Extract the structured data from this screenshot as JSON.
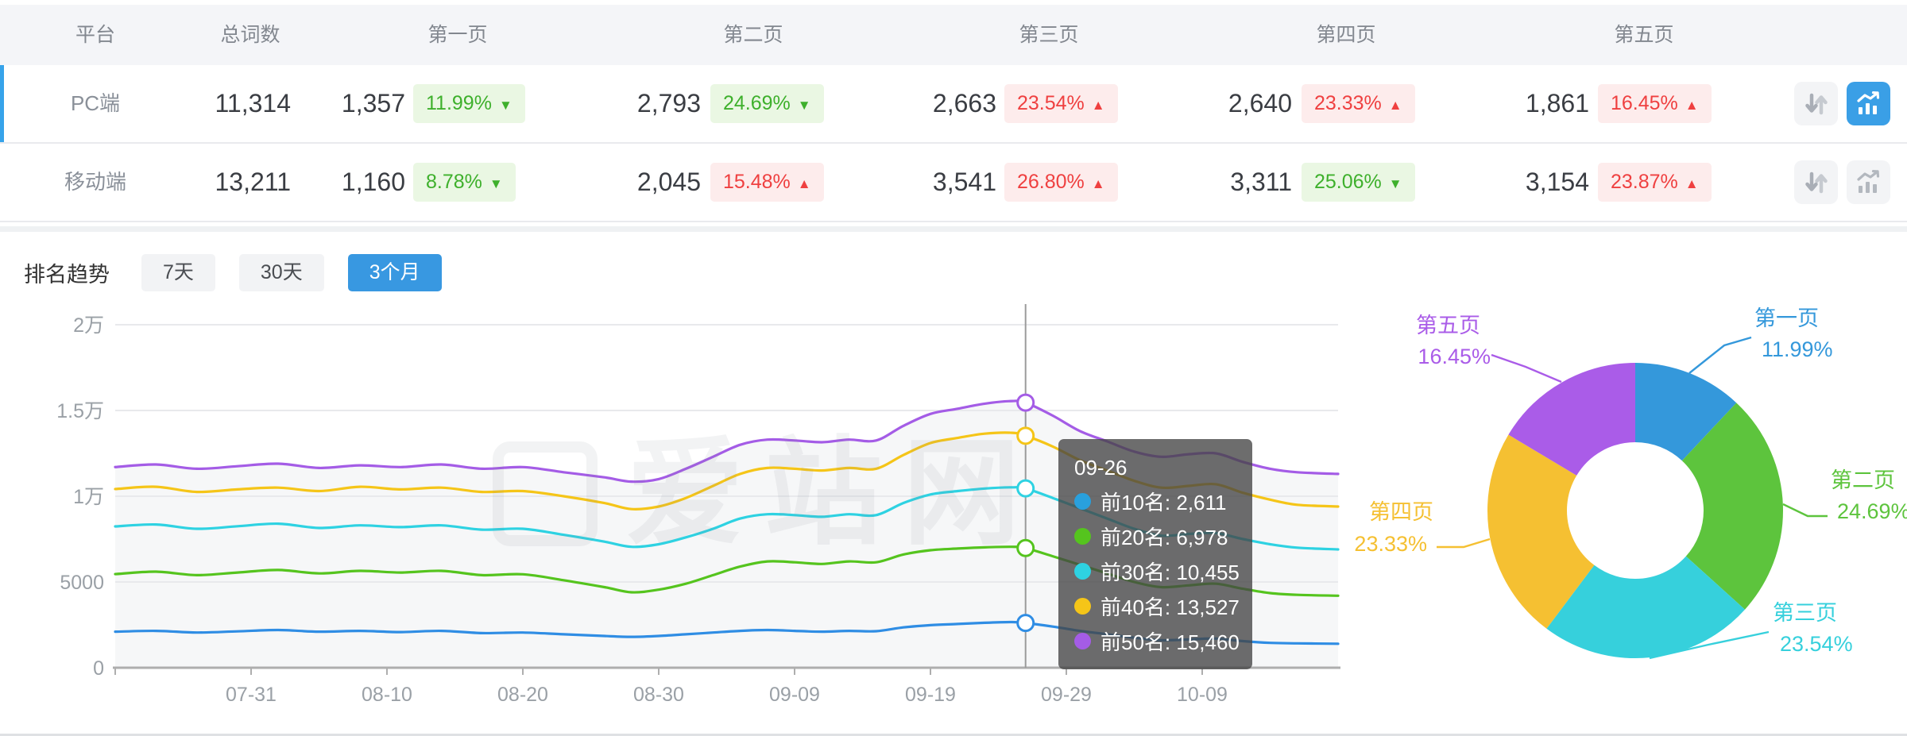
{
  "table": {
    "headers": {
      "platform": "平台",
      "total": "总词数",
      "page1": "第一页",
      "page2": "第二页",
      "page3": "第三页",
      "page4": "第四页",
      "page5": "第五页"
    },
    "rows": [
      {
        "platform": "PC端",
        "total": "11,314",
        "pages": [
          {
            "count": "1,357",
            "pct": "11.99%",
            "dir": "down",
            "tone": "green"
          },
          {
            "count": "2,793",
            "pct": "24.69%",
            "dir": "down",
            "tone": "green"
          },
          {
            "count": "2,663",
            "pct": "23.54%",
            "dir": "up",
            "tone": "red"
          },
          {
            "count": "2,640",
            "pct": "23.33%",
            "dir": "up",
            "tone": "red"
          },
          {
            "count": "1,861",
            "pct": "16.45%",
            "dir": "up",
            "tone": "red"
          }
        ],
        "chart_active": true
      },
      {
        "platform": "移动端",
        "total": "13,211",
        "pages": [
          {
            "count": "1,160",
            "pct": "8.78%",
            "dir": "down",
            "tone": "green"
          },
          {
            "count": "2,045",
            "pct": "15.48%",
            "dir": "up",
            "tone": "red"
          },
          {
            "count": "3,541",
            "pct": "26.80%",
            "dir": "up",
            "tone": "red"
          },
          {
            "count": "3,311",
            "pct": "25.06%",
            "dir": "down",
            "tone": "green"
          },
          {
            "count": "3,154",
            "pct": "23.87%",
            "dir": "up",
            "tone": "red"
          }
        ],
        "chart_active": false
      }
    ]
  },
  "trend": {
    "title": "排名趋势",
    "tabs": [
      {
        "label": "7天",
        "active": false
      },
      {
        "label": "30天",
        "active": false
      },
      {
        "label": "3个月",
        "active": true
      }
    ]
  },
  "watermark": {
    "text": "爱站网"
  },
  "tooltip": {
    "title": "09-26",
    "rows": [
      {
        "name": "前10名",
        "value": "2,611",
        "color": "#29a0dd"
      },
      {
        "name": "前20名",
        "value": "6,978",
        "color": "#55c41e"
      },
      {
        "name": "前30名",
        "value": "10,455",
        "color": "#2ed2e2"
      },
      {
        "name": "前40名",
        "value": "13,527",
        "color": "#f5c518"
      },
      {
        "name": "前50名",
        "value": "15,460",
        "color": "#a45ce6"
      }
    ]
  },
  "chart_data": [
    {
      "type": "line",
      "title": "排名趋势 3个月",
      "xlabel": "",
      "ylabel": "",
      "ylim": [
        0,
        20000
      ],
      "grid": true,
      "y_ticks": [
        {
          "label": "0",
          "value": 0
        },
        {
          "label": "5000",
          "value": 5000
        },
        {
          "label": "1万",
          "value": 10000
        },
        {
          "label": "1.5万",
          "value": 15000
        },
        {
          "label": "2万",
          "value": 20000
        }
      ],
      "x_ticks": [
        {
          "label": "07-31",
          "day": 10
        },
        {
          "label": "08-10",
          "day": 20
        },
        {
          "label": "08-20",
          "day": 30
        },
        {
          "label": "08-30",
          "day": 40
        },
        {
          "label": "09-09",
          "day": 50
        },
        {
          "label": "09-19",
          "day": 60
        },
        {
          "label": "09-29",
          "day": 70
        },
        {
          "label": "10-09",
          "day": 80
        }
      ],
      "x_range_days": [
        0,
        90
      ],
      "crosshair_day": 67,
      "crosshair_date": "09-26",
      "series": [
        {
          "name": "前10名",
          "color": "#2f8de4",
          "points": [
            [
              0,
              2100
            ],
            [
              3,
              2150
            ],
            [
              6,
              2050
            ],
            [
              9,
              2120
            ],
            [
              12,
              2200
            ],
            [
              15,
              2100
            ],
            [
              18,
              2150
            ],
            [
              21,
              2080
            ],
            [
              24,
              2150
            ],
            [
              27,
              2020
            ],
            [
              30,
              2050
            ],
            [
              33,
              1950
            ],
            [
              36,
              1850
            ],
            [
              38,
              1800
            ],
            [
              40,
              1850
            ],
            [
              42,
              1950
            ],
            [
              44,
              2050
            ],
            [
              46,
              2150
            ],
            [
              48,
              2200
            ],
            [
              50,
              2150
            ],
            [
              52,
              2100
            ],
            [
              54,
              2150
            ],
            [
              56,
              2130
            ],
            [
              58,
              2350
            ],
            [
              60,
              2480
            ],
            [
              62,
              2550
            ],
            [
              64,
              2620
            ],
            [
              66,
              2660
            ],
            [
              67,
              2611
            ],
            [
              69,
              2400
            ],
            [
              71,
              2150
            ],
            [
              73,
              1950
            ],
            [
              75,
              1750
            ],
            [
              77,
              1600
            ],
            [
              79,
              1650
            ],
            [
              81,
              1700
            ],
            [
              83,
              1550
            ],
            [
              85,
              1450
            ],
            [
              87,
              1420
            ],
            [
              90,
              1400
            ]
          ]
        },
        {
          "name": "前20名",
          "color": "#55c41e",
          "points": [
            [
              0,
              5460
            ],
            [
              3,
              5600
            ],
            [
              6,
              5400
            ],
            [
              9,
              5550
            ],
            [
              12,
              5700
            ],
            [
              15,
              5500
            ],
            [
              18,
              5650
            ],
            [
              21,
              5550
            ],
            [
              24,
              5650
            ],
            [
              27,
              5400
            ],
            [
              30,
              5450
            ],
            [
              33,
              5100
            ],
            [
              36,
              4700
            ],
            [
              38,
              4400
            ],
            [
              40,
              4550
            ],
            [
              42,
              4900
            ],
            [
              44,
              5400
            ],
            [
              46,
              5900
            ],
            [
              48,
              6200
            ],
            [
              50,
              6150
            ],
            [
              52,
              6050
            ],
            [
              54,
              6200
            ],
            [
              56,
              6150
            ],
            [
              58,
              6600
            ],
            [
              60,
              6850
            ],
            [
              62,
              6950
            ],
            [
              64,
              7020
            ],
            [
              66,
              7050
            ],
            [
              67,
              6978
            ],
            [
              69,
              6500
            ],
            [
              71,
              6000
            ],
            [
              73,
              5500
            ],
            [
              75,
              5000
            ],
            [
              77,
              4700
            ],
            [
              79,
              4800
            ],
            [
              81,
              4900
            ],
            [
              83,
              4600
            ],
            [
              85,
              4350
            ],
            [
              87,
              4250
            ],
            [
              90,
              4200
            ]
          ]
        },
        {
          "name": "前30名",
          "color": "#2ed2e2",
          "points": [
            [
              0,
              8240
            ],
            [
              3,
              8350
            ],
            [
              6,
              8100
            ],
            [
              9,
              8250
            ],
            [
              12,
              8400
            ],
            [
              15,
              8150
            ],
            [
              18,
              8300
            ],
            [
              21,
              8200
            ],
            [
              24,
              8300
            ],
            [
              27,
              8050
            ],
            [
              30,
              8100
            ],
            [
              33,
              7750
            ],
            [
              36,
              7350
            ],
            [
              38,
              7050
            ],
            [
              40,
              7200
            ],
            [
              42,
              7600
            ],
            [
              44,
              8100
            ],
            [
              46,
              8700
            ],
            [
              48,
              8950
            ],
            [
              50,
              8900
            ],
            [
              52,
              8800
            ],
            [
              54,
              8950
            ],
            [
              56,
              8900
            ],
            [
              58,
              9600
            ],
            [
              60,
              10100
            ],
            [
              62,
              10300
            ],
            [
              64,
              10450
            ],
            [
              66,
              10520
            ],
            [
              67,
              10455
            ],
            [
              69,
              9900
            ],
            [
              71,
              9300
            ],
            [
              73,
              8700
            ],
            [
              75,
              8100
            ],
            [
              77,
              7700
            ],
            [
              79,
              7800
            ],
            [
              81,
              7850
            ],
            [
              83,
              7500
            ],
            [
              85,
              7200
            ],
            [
              87,
              7000
            ],
            [
              90,
              6900
            ]
          ]
        },
        {
          "name": "前40名",
          "color": "#f5c518",
          "points": [
            [
              0,
              10420
            ],
            [
              3,
              10550
            ],
            [
              6,
              10250
            ],
            [
              9,
              10400
            ],
            [
              12,
              10500
            ],
            [
              15,
              10300
            ],
            [
              18,
              10550
            ],
            [
              21,
              10400
            ],
            [
              24,
              10500
            ],
            [
              27,
              10250
            ],
            [
              30,
              10300
            ],
            [
              33,
              10000
            ],
            [
              36,
              9600
            ],
            [
              38,
              9250
            ],
            [
              40,
              9400
            ],
            [
              42,
              9900
            ],
            [
              44,
              10600
            ],
            [
              46,
              11300
            ],
            [
              48,
              11650
            ],
            [
              50,
              11600
            ],
            [
              52,
              11500
            ],
            [
              54,
              11650
            ],
            [
              56,
              11600
            ],
            [
              58,
              12400
            ],
            [
              60,
              13100
            ],
            [
              62,
              13400
            ],
            [
              64,
              13650
            ],
            [
              66,
              13700
            ],
            [
              67,
              13527
            ],
            [
              69,
              12900
            ],
            [
              71,
              12100
            ],
            [
              73,
              11500
            ],
            [
              75,
              10900
            ],
            [
              77,
              10500
            ],
            [
              79,
              10600
            ],
            [
              81,
              10700
            ],
            [
              83,
              10200
            ],
            [
              85,
              9800
            ],
            [
              87,
              9500
            ],
            [
              90,
              9400
            ]
          ]
        },
        {
          "name": "前50名",
          "color": "#a45ce6",
          "points": [
            [
              0,
              11700
            ],
            [
              3,
              11850
            ],
            [
              6,
              11600
            ],
            [
              9,
              11750
            ],
            [
              12,
              11900
            ],
            [
              15,
              11650
            ],
            [
              18,
              11800
            ],
            [
              21,
              11700
            ],
            [
              24,
              11850
            ],
            [
              27,
              11600
            ],
            [
              30,
              11700
            ],
            [
              33,
              11400
            ],
            [
              36,
              11100
            ],
            [
              38,
              10850
            ],
            [
              40,
              11000
            ],
            [
              42,
              11600
            ],
            [
              44,
              12300
            ],
            [
              46,
              13000
            ],
            [
              48,
              13300
            ],
            [
              50,
              13250
            ],
            [
              52,
              13150
            ],
            [
              54,
              13300
            ],
            [
              56,
              13250
            ],
            [
              58,
              14100
            ],
            [
              60,
              14800
            ],
            [
              62,
              15100
            ],
            [
              64,
              15400
            ],
            [
              66,
              15550
            ],
            [
              67,
              15460
            ],
            [
              69,
              14700
            ],
            [
              71,
              13800
            ],
            [
              73,
              13200
            ],
            [
              75,
              12600
            ],
            [
              77,
              12300
            ],
            [
              79,
              12450
            ],
            [
              81,
              12500
            ],
            [
              83,
              12000
            ],
            [
              85,
              11600
            ],
            [
              87,
              11400
            ],
            [
              90,
              11300
            ]
          ]
        }
      ]
    },
    {
      "type": "pie",
      "donut": true,
      "labels": [
        "第一页",
        "第二页",
        "第三页",
        "第四页",
        "第五页"
      ],
      "values": [
        11.99,
        24.69,
        23.54,
        23.33,
        16.45
      ],
      "value_labels": [
        "11.99%",
        "24.69%",
        "23.54%",
        "23.33%",
        "16.45%"
      ],
      "colors": [
        "#3498db",
        "#5dc43d",
        "#36d0dc",
        "#f5c032",
        "#aa5ce8"
      ]
    }
  ]
}
